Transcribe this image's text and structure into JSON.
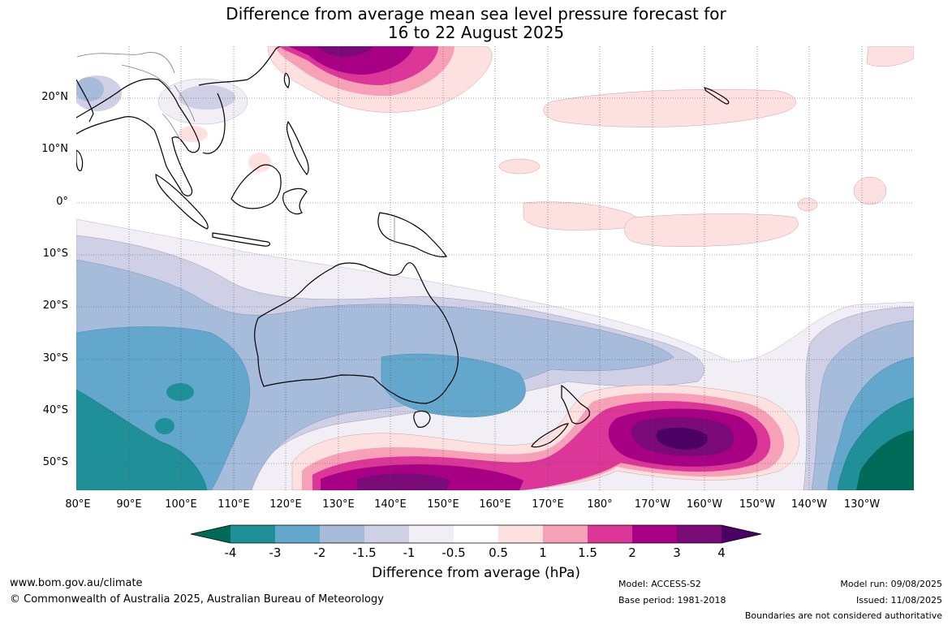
{
  "title_line1": "Difference from average mean sea level pressure forecast for",
  "title_line2": "16 to 22 August 2025",
  "map": {
    "lat_labels": [
      "20°N",
      "10°N",
      "0°",
      "10°S",
      "20°S",
      "30°S",
      "40°S",
      "50°S"
    ],
    "lon_labels": [
      "80°E",
      "90°E",
      "100°E",
      "110°E",
      "120°E",
      "130°E",
      "140°E",
      "150°E",
      "160°E",
      "170°E",
      "180°",
      "170°W",
      "160°W",
      "150°W",
      "140°W",
      "130°W"
    ]
  },
  "colorbar": {
    "title": "Difference from average (hPa)",
    "labels": [
      "-4",
      "-3",
      "-2",
      "-1.5",
      "-1",
      "-0.5",
      "0.5",
      "1",
      "1.5",
      "2",
      "3",
      "4"
    ],
    "colors": [
      "#006a58",
      "#1f9098",
      "#63a8cc",
      "#a7bbdb",
      "#cfd0e6",
      "#f1eff5",
      "#ffffff",
      "#fde0e0",
      "#f7a1b8",
      "#db3698",
      "#a80084",
      "#7a0a78",
      "#4b0063"
    ]
  },
  "footer": {
    "website": "www.bom.gov.au/climate",
    "copyright": "© Commonwealth of Australia 2025, Australian Bureau of Meteorology",
    "model": "Model: ACCESS-S2",
    "base_period": "Base period: 1981-2018",
    "model_run": "Model run: 09/08/2025",
    "issued": "Issued: 11/08/2025",
    "disclaimer": "Boundaries are not considered authoritative"
  }
}
